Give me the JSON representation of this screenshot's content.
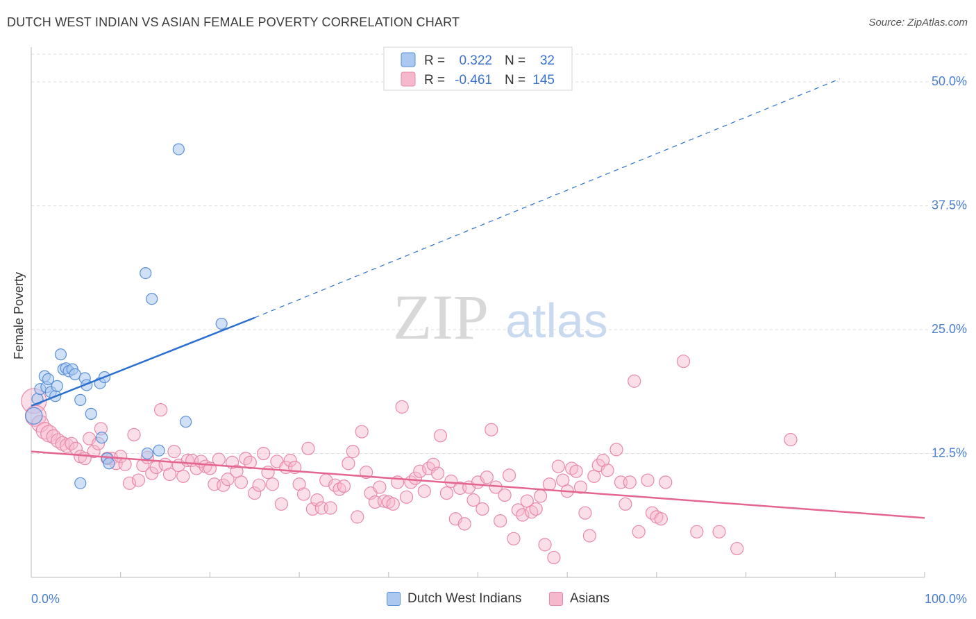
{
  "title": "DUTCH WEST INDIAN VS ASIAN FEMALE POVERTY CORRELATION CHART",
  "source": "Source: ZipAtlas.com",
  "watermark": {
    "zip": "ZIP",
    "atlas": "atlas"
  },
  "stats": [
    {
      "r_label": "R =",
      "r_value": "0.322",
      "n_label": "N =",
      "n_value": "32"
    },
    {
      "r_label": "R =",
      "r_value": "-0.461",
      "n_label": "N =",
      "n_value": "145"
    }
  ],
  "legend": {
    "series1": "Dutch West Indians",
    "series2": "Asians"
  },
  "colors": {
    "blue_fill": "#aac8f0",
    "blue_stroke": "#5b8fd6",
    "blue_line": "#2a6fd0",
    "pink_fill": "#f6b8cc",
    "pink_stroke": "#e889a8",
    "pink_line": "#e4668f",
    "tick_label": "#4a7fd0",
    "grid": "#dcdcdc"
  },
  "chart_data": {
    "type": "scatter",
    "title": "DUTCH WEST INDIAN VS ASIAN FEMALE POVERTY CORRELATION CHART",
    "xlabel": "",
    "ylabel": "Female Poverty",
    "xlim": [
      0,
      100
    ],
    "ylim": [
      0,
      53.5
    ],
    "x_tick_labels": [
      "0.0%",
      "100.0%"
    ],
    "y_ticks": [
      12.5,
      25.0,
      37.5,
      50.0
    ],
    "y_tick_labels": [
      "12.5%",
      "25.0%",
      "37.5%",
      "50.0%"
    ],
    "grid": true,
    "legend_position": "bottom-center",
    "series": [
      {
        "name": "Dutch West Indians",
        "r": 0.322,
        "n": 32,
        "trend": {
          "x0": 0,
          "y0": 17.3,
          "x1": 25,
          "y1": 26.2,
          "dashed_to_x": 90.5,
          "dashed_to_y": 50.3
        },
        "points": [
          [
            0.3,
            16.3,
            12
          ],
          [
            0.7,
            18.0,
            8
          ],
          [
            1.0,
            19.0,
            8
          ],
          [
            1.5,
            20.3,
            8
          ],
          [
            1.7,
            19.2,
            8
          ],
          [
            1.9,
            20.0,
            8
          ],
          [
            2.2,
            18.7,
            8
          ],
          [
            2.7,
            18.3,
            8
          ],
          [
            2.9,
            19.3,
            8
          ],
          [
            3.3,
            22.5,
            8
          ],
          [
            3.6,
            21.0,
            8
          ],
          [
            3.9,
            21.1,
            8
          ],
          [
            4.2,
            20.8,
            8
          ],
          [
            4.6,
            21.0,
            8
          ],
          [
            4.9,
            20.5,
            8
          ],
          [
            5.5,
            17.9,
            8
          ],
          [
            6.0,
            20.1,
            8
          ],
          [
            6.2,
            19.4,
            8
          ],
          [
            6.7,
            16.5,
            8
          ],
          [
            7.7,
            19.6,
            8
          ],
          [
            7.9,
            14.1,
            8
          ],
          [
            8.2,
            20.2,
            8
          ],
          [
            8.5,
            12.0,
            8
          ],
          [
            8.7,
            11.5,
            8
          ],
          [
            5.5,
            9.5,
            8
          ],
          [
            13.0,
            12.5,
            8
          ],
          [
            14.3,
            12.8,
            8
          ],
          [
            12.8,
            30.7,
            8
          ],
          [
            13.5,
            28.1,
            8
          ],
          [
            16.5,
            43.2,
            8
          ],
          [
            17.3,
            15.7,
            8
          ],
          [
            21.3,
            25.6,
            8
          ]
        ]
      },
      {
        "name": "Asians",
        "r": -0.461,
        "n": 145,
        "trend": {
          "x0": 0,
          "y0": 12.7,
          "x1": 100,
          "y1": 6.0
        },
        "points": [
          [
            0.3,
            17.8,
            18
          ],
          [
            0.5,
            16.3,
            15
          ],
          [
            1.0,
            15.5,
            12
          ],
          [
            1.5,
            14.8,
            12
          ],
          [
            2.0,
            14.5,
            12
          ],
          [
            2.5,
            14.2,
            10
          ],
          [
            3.0,
            13.8,
            10
          ],
          [
            3.5,
            13.5,
            10
          ],
          [
            4.0,
            13.3,
            10
          ],
          [
            4.5,
            13.5,
            9
          ],
          [
            5.0,
            13.0,
            9
          ],
          [
            5.5,
            12.2,
            9
          ],
          [
            6.0,
            12.0,
            9
          ],
          [
            6.5,
            14.0,
            9
          ],
          [
            7.0,
            12.7,
            9
          ],
          [
            7.5,
            13.5,
            9
          ],
          [
            7.8,
            15.0,
            9
          ],
          [
            8.5,
            12.0,
            9
          ],
          [
            9.0,
            12.0,
            9
          ],
          [
            9.5,
            11.5,
            9
          ],
          [
            10.0,
            12.2,
            9
          ],
          [
            10.5,
            11.4,
            9
          ],
          [
            11.0,
            9.5,
            9
          ],
          [
            11.5,
            14.4,
            9
          ],
          [
            12.0,
            9.8,
            9
          ],
          [
            12.5,
            11.3,
            9
          ],
          [
            13.0,
            12.1,
            9
          ],
          [
            13.5,
            10.5,
            9
          ],
          [
            14.0,
            11.1,
            9
          ],
          [
            14.5,
            16.9,
            9
          ],
          [
            15.0,
            11.4,
            9
          ],
          [
            15.5,
            10.4,
            9
          ],
          [
            16.0,
            12.7,
            9
          ],
          [
            16.5,
            11.3,
            9
          ],
          [
            17.0,
            10.2,
            9
          ],
          [
            17.5,
            11.8,
            9
          ],
          [
            18.0,
            11.8,
            9
          ],
          [
            18.5,
            11.0,
            9
          ],
          [
            19.0,
            11.7,
            9
          ],
          [
            19.5,
            11.2,
            9
          ],
          [
            20.0,
            11.0,
            9
          ],
          [
            20.5,
            9.4,
            9
          ],
          [
            21.0,
            11.9,
            9
          ],
          [
            21.5,
            9.3,
            9
          ],
          [
            22.0,
            9.9,
            9
          ],
          [
            22.5,
            11.6,
            9
          ],
          [
            23.0,
            10.7,
            9
          ],
          [
            23.5,
            9.6,
            9
          ],
          [
            24.0,
            12.0,
            9
          ],
          [
            24.5,
            11.6,
            9
          ],
          [
            25.0,
            8.5,
            9
          ],
          [
            25.5,
            9.3,
            9
          ],
          [
            26.0,
            12.5,
            9
          ],
          [
            26.5,
            10.6,
            9
          ],
          [
            27.0,
            9.4,
            9
          ],
          [
            27.5,
            11.7,
            9
          ],
          [
            28.0,
            7.4,
            9
          ],
          [
            28.5,
            11.1,
            9
          ],
          [
            29.0,
            11.8,
            9
          ],
          [
            29.5,
            11.1,
            9
          ],
          [
            30.0,
            9.4,
            9
          ],
          [
            30.5,
            8.4,
            9
          ],
          [
            31.0,
            13.0,
            9
          ],
          [
            31.5,
            6.9,
            9
          ],
          [
            32.0,
            7.8,
            9
          ],
          [
            32.5,
            7.0,
            9
          ],
          [
            33.0,
            9.8,
            9
          ],
          [
            33.5,
            7.0,
            9
          ],
          [
            34.0,
            9.3,
            9
          ],
          [
            34.5,
            8.9,
            9
          ],
          [
            35.0,
            9.2,
            9
          ],
          [
            35.5,
            11.5,
            9
          ],
          [
            36.0,
            12.7,
            9
          ],
          [
            36.5,
            6.1,
            9
          ],
          [
            37.0,
            14.7,
            9
          ],
          [
            37.5,
            10.6,
            9
          ],
          [
            38.0,
            8.5,
            9
          ],
          [
            38.5,
            7.6,
            9
          ],
          [
            39.0,
            9.1,
            9
          ],
          [
            39.5,
            7.7,
            9
          ],
          [
            40.0,
            7.6,
            9
          ],
          [
            40.5,
            7.4,
            9
          ],
          [
            41.0,
            9.6,
            9
          ],
          [
            41.5,
            17.2,
            9
          ],
          [
            42.0,
            8.1,
            9
          ],
          [
            42.5,
            9.6,
            9
          ],
          [
            43.0,
            10.0,
            9
          ],
          [
            43.5,
            10.7,
            9
          ],
          [
            44.0,
            8.7,
            9
          ],
          [
            44.5,
            11.0,
            9
          ],
          [
            45.0,
            11.4,
            9
          ],
          [
            45.5,
            10.5,
            9
          ],
          [
            45.8,
            14.3,
            9
          ],
          [
            46.5,
            8.5,
            9
          ],
          [
            47.0,
            9.7,
            9
          ],
          [
            47.5,
            5.9,
            9
          ],
          [
            48.0,
            9.0,
            9
          ],
          [
            48.5,
            5.4,
            9
          ],
          [
            49.0,
            9.1,
            9
          ],
          [
            49.5,
            7.8,
            9
          ],
          [
            50.0,
            9.6,
            9
          ],
          [
            50.5,
            6.9,
            9
          ],
          [
            51.0,
            10.1,
            9
          ],
          [
            51.5,
            14.9,
            9
          ],
          [
            52.0,
            9.1,
            9
          ],
          [
            52.5,
            5.7,
            9
          ],
          [
            53.0,
            8.3,
            9
          ],
          [
            53.5,
            10.3,
            9
          ],
          [
            54.0,
            3.9,
            9
          ],
          [
            54.5,
            6.8,
            9
          ],
          [
            55.0,
            6.3,
            9
          ],
          [
            55.5,
            7.7,
            9
          ],
          [
            56.0,
            6.6,
            9
          ],
          [
            56.5,
            6.9,
            9
          ],
          [
            57.0,
            8.2,
            9
          ],
          [
            57.5,
            3.3,
            9
          ],
          [
            58.0,
            9.4,
            9
          ],
          [
            58.5,
            2.0,
            9
          ],
          [
            59.0,
            11.2,
            9
          ],
          [
            59.5,
            9.8,
            9
          ],
          [
            60.0,
            8.7,
            9
          ],
          [
            60.5,
            11.0,
            9
          ],
          [
            61.0,
            10.7,
            9
          ],
          [
            61.5,
            9.1,
            9
          ],
          [
            62.0,
            6.5,
            9
          ],
          [
            62.5,
            4.2,
            9
          ],
          [
            63.0,
            10.2,
            9
          ],
          [
            63.5,
            11.3,
            9
          ],
          [
            64.0,
            11.8,
            9
          ],
          [
            64.5,
            10.8,
            9
          ],
          [
            65.5,
            12.9,
            9
          ],
          [
            66.0,
            9.6,
            9
          ],
          [
            66.5,
            7.4,
            9
          ],
          [
            67.0,
            9.6,
            9
          ],
          [
            67.5,
            19.8,
            9
          ],
          [
            68.0,
            4.6,
            9
          ],
          [
            69.0,
            9.8,
            9
          ],
          [
            69.5,
            6.5,
            9
          ],
          [
            70.0,
            6.1,
            9
          ],
          [
            70.5,
            5.9,
            9
          ],
          [
            71.0,
            9.6,
            9
          ],
          [
            73.0,
            21.8,
            9
          ],
          [
            74.5,
            4.6,
            9
          ],
          [
            77.0,
            4.6,
            9
          ],
          [
            79.0,
            2.9,
            9
          ],
          [
            85.0,
            13.9,
            9
          ]
        ]
      }
    ]
  }
}
